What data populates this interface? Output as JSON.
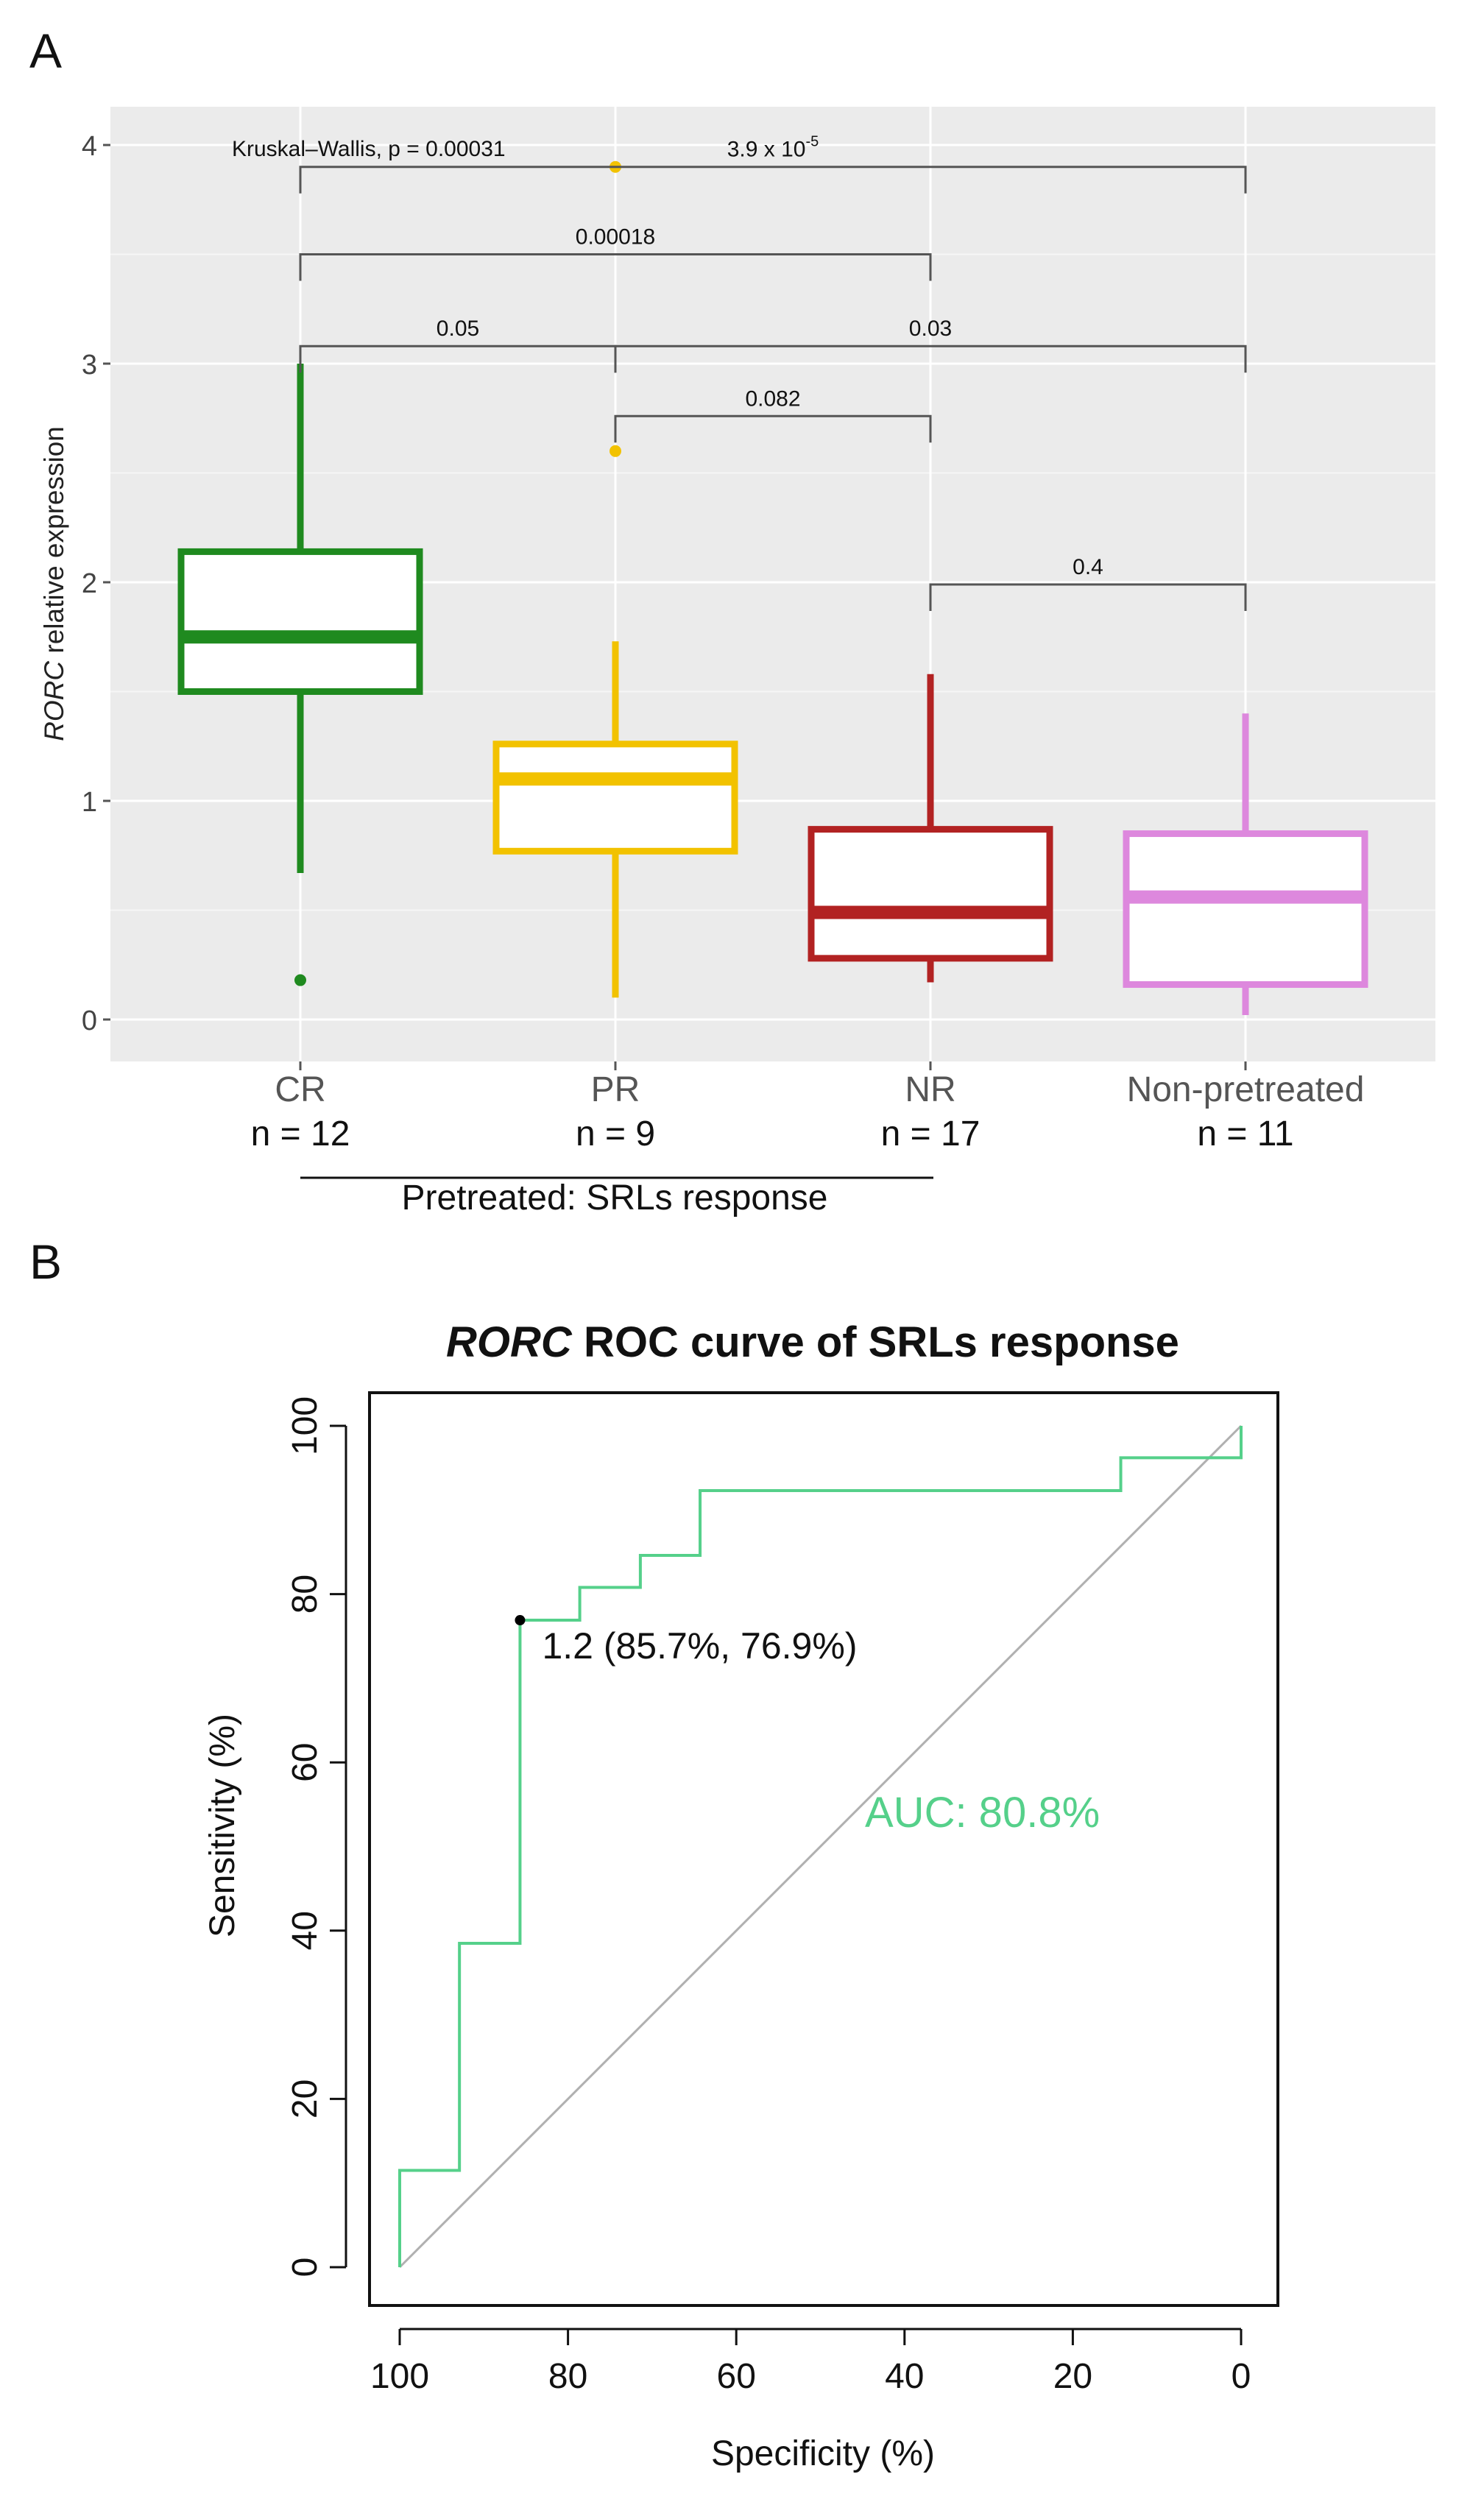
{
  "panel_a": {
    "label": "A",
    "ylabel_italic": "RORC",
    "ylabel_rest": " relative expression",
    "group_bracket_label": "Pretreated: SRLs response",
    "global_test": "Kruskal–Wallis, p = 0.00031"
  },
  "panel_b": {
    "label": "B",
    "title_italic": "RORC",
    "title_rest": " ROC curve of SRLs response",
    "threshold_label": "1.2 (85.7%, 76.9%)",
    "auc_label": "AUC: 80.8%"
  },
  "chart_data": [
    {
      "type": "box",
      "title": "",
      "xlabel": "",
      "ylabel": "RORC relative expression",
      "ylim": [
        -0.15,
        4.2
      ],
      "yticks": [
        0,
        1,
        2,
        3,
        4
      ],
      "grid": true,
      "categories": [
        {
          "name": "CR",
          "n_label": "n = 12",
          "color": "#1f8a1f",
          "whisker_low": 0.67,
          "q1": 1.5,
          "median": 1.75,
          "q3": 2.14,
          "whisker_high": 3.0,
          "outliers": [
            0.18
          ]
        },
        {
          "name": "PR",
          "n_label": "n = 9",
          "color": "#f2c200",
          "whisker_low": 0.1,
          "q1": 0.77,
          "median": 1.1,
          "q3": 1.26,
          "whisker_high": 1.73,
          "outliers": [
            2.6,
            3.9
          ]
        },
        {
          "name": "NR",
          "n_label": "n = 17",
          "color": "#b22222",
          "whisker_low": 0.17,
          "q1": 0.28,
          "median": 0.49,
          "q3": 0.87,
          "whisker_high": 1.58,
          "outliers": []
        },
        {
          "name": "Non-pretreated",
          "n_label": "n = 11",
          "color": "#dd88dd",
          "whisker_low": 0.02,
          "q1": 0.16,
          "median": 0.56,
          "q3": 0.85,
          "whisker_high": 1.4,
          "outliers": []
        }
      ],
      "comparisons": [
        {
          "from": 0,
          "to": 3,
          "y": 3.9,
          "label_base": "3.9 x 10",
          "label_exp": "-5"
        },
        {
          "from": 0,
          "to": 2,
          "y": 3.5,
          "label": "0.00018"
        },
        {
          "from": 0,
          "to": 1,
          "y": 3.08,
          "label": "0.05"
        },
        {
          "from": 1,
          "to": 3,
          "y": 3.08,
          "label": "0.03"
        },
        {
          "from": 1,
          "to": 2,
          "y": 2.76,
          "label": "0.082"
        },
        {
          "from": 2,
          "to": 3,
          "y": 1.99,
          "label": "0.4"
        }
      ]
    },
    {
      "type": "line",
      "title": "RORC ROC curve of SRLs response",
      "xlabel": "Specificity (%)",
      "ylabel": "Sensitivity (%)",
      "xlim": [
        100,
        0
      ],
      "ylim": [
        0,
        100
      ],
      "xticks": [
        100,
        80,
        60,
        40,
        20,
        0
      ],
      "yticks": [
        0,
        20,
        40,
        60,
        80,
        100
      ],
      "roc_points": [
        [
          100,
          0
        ],
        [
          100,
          11.5
        ],
        [
          92.9,
          11.5
        ],
        [
          92.9,
          38.5
        ],
        [
          85.7,
          38.5
        ],
        [
          85.7,
          76.9
        ],
        [
          78.6,
          76.9
        ],
        [
          78.6,
          80.8
        ],
        [
          71.4,
          80.8
        ],
        [
          71.4,
          84.6
        ],
        [
          64.3,
          84.6
        ],
        [
          64.3,
          92.3
        ],
        [
          14.3,
          92.3
        ],
        [
          14.3,
          96.2
        ],
        [
          0,
          96.2
        ],
        [
          0,
          100
        ]
      ],
      "diagonal": [
        [
          100,
          0
        ],
        [
          0,
          100
        ]
      ],
      "threshold_point": {
        "specificity": 85.7,
        "sensitivity": 76.9,
        "threshold": 1.2
      },
      "auc": 80.8,
      "colors": {
        "curve": "#55d08a",
        "diagonal": "#b0b0b0",
        "point": "#000000",
        "auc_text": "#55d08a"
      }
    }
  ]
}
